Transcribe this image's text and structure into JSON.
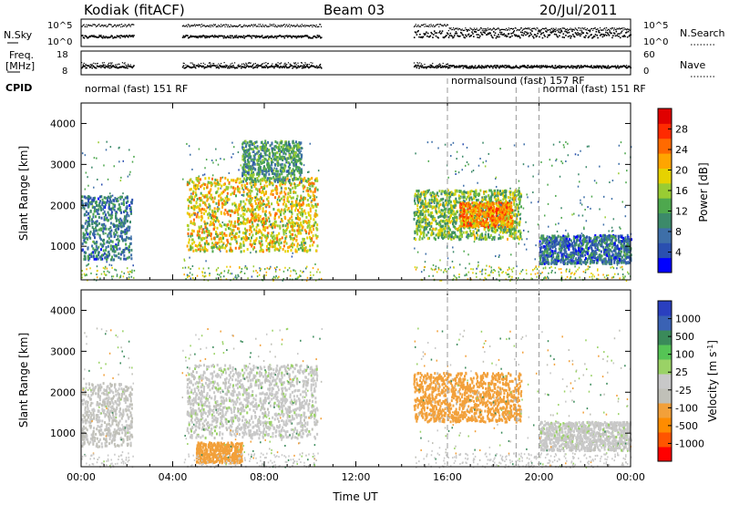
{
  "header": {
    "radar": "Kodiak (fitACF)",
    "beam": "Beam 03",
    "date": "20/Jul/2011"
  },
  "labels": {
    "nsky": "N.Sky",
    "nsearch": "N.Search",
    "freq_line1": "Freq.",
    "freq_line2": "[MHz]",
    "nave": "Nave",
    "cpid": "CPID",
    "tenfive_left": "10^5",
    "tenzero_left": "10^0",
    "tenfive_right": "10^5",
    "tenzero_right": "10^0",
    "freq_hi": "18",
    "freq_lo": "8",
    "nave_hi": "60",
    "nave_lo": "0"
  },
  "cpid_segments": [
    {
      "label": "normal (fast) 151 RF",
      "start_hour": 0
    },
    {
      "label": "normalsound (fast) 157 RF",
      "start_hour": 16
    },
    {
      "label": "normal (fast) 151 RF",
      "start_hour": 20
    }
  ],
  "colors": {
    "power_scale": [
      "#0000ff",
      "#2a4fb0",
      "#3e6fa8",
      "#3c8a6a",
      "#4ea84e",
      "#99cc33",
      "#e6d200",
      "#ffa500",
      "#ff6a00",
      "#ff2a00",
      "#e00000"
    ],
    "velocity_scale": [
      "#ff0000",
      "#ff5500",
      "#ff8c00",
      "#f2a03a",
      "#c0c0b8",
      "#c8c8c8",
      "#9ad266",
      "#55c455",
      "#3a8a5a",
      "#3a62b4",
      "#2a3fbf"
    ]
  },
  "chart_data": [
    {
      "type": "heatmap",
      "title": "Power",
      "xlabel": "Time UT",
      "ylabel": "Slant Range [km]",
      "xticks": [
        "00:00",
        "04:00",
        "08:00",
        "12:00",
        "16:00",
        "20:00",
        "00:00"
      ],
      "xlim_hours": [
        0,
        24
      ],
      "ylim_km": [
        180,
        4500
      ],
      "yticks": [
        1000,
        2000,
        3000,
        4000
      ],
      "colorbar": {
        "label": "Power [dB]",
        "ticks": [
          4,
          8,
          12,
          16,
          20,
          24,
          28
        ],
        "range": [
          0,
          30
        ]
      },
      "data_gaps_hours": [
        [
          2.3,
          4.4
        ],
        [
          10.5,
          14.5
        ]
      ],
      "scatter_regions": [
        {
          "t": [
            0.0,
            2.2
          ],
          "range_km": [
            700,
            2250
          ],
          "value": 7
        },
        {
          "t": [
            4.6,
            10.3
          ],
          "range_km": [
            900,
            2700
          ],
          "value": 18
        },
        {
          "t": [
            7.0,
            9.6
          ],
          "range_km": [
            2600,
            3600
          ],
          "value": 10
        },
        {
          "t": [
            14.5,
            19.2
          ],
          "range_km": [
            1200,
            2400
          ],
          "value": 14
        },
        {
          "t": [
            16.5,
            18.8
          ],
          "range_km": [
            1500,
            2100
          ],
          "value": 22
        },
        {
          "t": [
            20.0,
            24.0
          ],
          "range_km": [
            600,
            1300
          ],
          "value": 6
        }
      ]
    },
    {
      "type": "heatmap",
      "title": "Velocity",
      "xlabel": "Time UT",
      "ylabel": "Slant Range [km]",
      "xticks": [
        "00:00",
        "04:00",
        "08:00",
        "12:00",
        "16:00",
        "20:00",
        "00:00"
      ],
      "xlim_hours": [
        0,
        24
      ],
      "ylim_km": [
        180,
        4500
      ],
      "yticks": [
        1000,
        2000,
        3000,
        4000
      ],
      "colorbar": {
        "label": "Velocity [m s^-1]",
        "ticks": [
          -1000,
          -500,
          -100,
          -25,
          25,
          100,
          500,
          1000
        ]
      },
      "scatter_regions": [
        {
          "t": [
            0.0,
            2.2
          ],
          "range_km": [
            700,
            2250
          ],
          "value": -25
        },
        {
          "t": [
            4.6,
            10.3
          ],
          "range_km": [
            900,
            2700
          ],
          "value": 0
        },
        {
          "t": [
            5.0,
            7.0
          ],
          "range_km": [
            300,
            800
          ],
          "value": -300
        },
        {
          "t": [
            14.5,
            19.2
          ],
          "range_km": [
            1300,
            2500
          ],
          "value": -250
        },
        {
          "t": [
            20.0,
            24.0
          ],
          "range_km": [
            600,
            1300
          ],
          "value": 0
        }
      ]
    }
  ]
}
